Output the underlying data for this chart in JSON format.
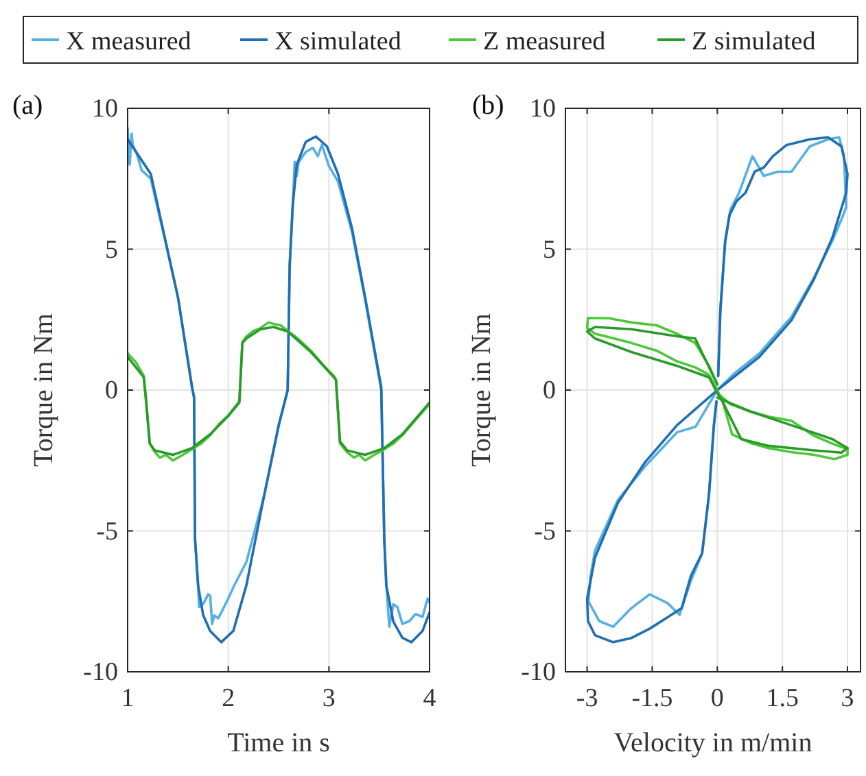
{
  "chart_data": [
    {
      "type": "line",
      "title": "(a)",
      "xlabel": "Time in s",
      "ylabel": "Torque in Nm",
      "xlim": [
        1,
        4
      ],
      "xticks": [
        1,
        2,
        3,
        4
      ],
      "ylim": [
        -10,
        10
      ],
      "yticks": [
        -10,
        -5,
        0,
        5,
        10
      ],
      "grid": true,
      "legend": "top",
      "series": [
        {
          "name": "X measured",
          "color": "#56b0e6",
          "x": [
            1,
            1.02,
            1.04,
            1.05,
            1.09,
            1.14,
            1.23,
            1.36,
            1.5,
            1.64,
            1.66,
            1.67,
            1.7,
            1.71,
            1.75,
            1.8,
            1.82,
            1.84,
            1.86,
            1.9,
            1.93,
            2.0,
            2.05,
            2.18,
            2.36,
            2.5,
            2.57,
            2.59,
            2.61,
            2.64,
            2.66,
            2.68,
            2.7,
            2.77,
            2.84,
            2.89,
            2.93,
            3.0,
            3.09,
            3.23,
            3.36,
            3.52,
            3.55,
            3.57,
            3.6,
            3.64,
            3.68,
            3.73,
            3.8,
            3.86,
            3.93,
            3.98,
            4
          ],
          "values": [
            9.3,
            8.0,
            9.1,
            8.7,
            8.4,
            7.8,
            7.5,
            5.5,
            3.3,
            0.1,
            -0.2,
            -5.3,
            -6.9,
            -7.7,
            -7.6,
            -7.25,
            -7.3,
            -8.3,
            -8.0,
            -8.1,
            -7.9,
            -7.4,
            -7.0,
            -6.1,
            -3.7,
            -1.3,
            -0.3,
            0,
            4.4,
            6.5,
            8.1,
            7.6,
            8.1,
            8.45,
            8.6,
            8.3,
            8.7,
            7.95,
            7.4,
            5.6,
            3.2,
            0,
            -5.3,
            -6.9,
            -8.4,
            -7.6,
            -7.7,
            -8.3,
            -8.2,
            -7.95,
            -8.05,
            -7.4,
            -7.55
          ]
        },
        {
          "name": "X simulated",
          "color": "#1f6fb2",
          "x": [
            1,
            1.23,
            1.36,
            1.5,
            1.64,
            1.66,
            1.67,
            1.7,
            1.75,
            1.82,
            1.93,
            2.05,
            2.18,
            2.36,
            2.5,
            2.57,
            2.59,
            2.61,
            2.64,
            2.68,
            2.77,
            2.87,
            2.98,
            3.09,
            3.23,
            3.36,
            3.52,
            3.55,
            3.57,
            3.64,
            3.73,
            3.82,
            3.93,
            4
          ],
          "values": [
            8.9,
            7.67,
            5.56,
            3.29,
            0.1,
            -0.28,
            -5.3,
            -6.93,
            -7.98,
            -8.55,
            -8.95,
            -8.55,
            -6.93,
            -3.68,
            -1.25,
            -0.28,
            0,
            4.43,
            6.54,
            8.0,
            8.81,
            9.0,
            8.65,
            7.67,
            5.73,
            3.29,
            0.1,
            -5.3,
            -6.93,
            -8.22,
            -8.79,
            -8.95,
            -8.55,
            -7.9
          ]
        },
        {
          "name": "Z measured",
          "color": "#4cc83a",
          "x": [
            1,
            1.08,
            1.16,
            1.18,
            1.22,
            1.27,
            1.32,
            1.38,
            1.45,
            1.55,
            1.64,
            1.73,
            1.82,
            1.91,
            2.0,
            2.11,
            2.14,
            2.18,
            2.25,
            2.32,
            2.4,
            2.45,
            2.52,
            2.59,
            2.7,
            2.82,
            2.94,
            3.05,
            3.07,
            3.11,
            3.18,
            3.25,
            3.3,
            3.36,
            3.45,
            3.55,
            3.64,
            3.73,
            3.85,
            4
          ],
          "values": [
            1.3,
            1.0,
            0.5,
            -0.2,
            -1.9,
            -2.2,
            -2.4,
            -2.3,
            -2.5,
            -2.3,
            -2.1,
            -1.9,
            -1.6,
            -1.2,
            -0.9,
            -0.4,
            1.7,
            1.9,
            2.1,
            2.2,
            2.4,
            2.35,
            2.3,
            2.1,
            1.8,
            1.4,
            0.9,
            0.5,
            0.35,
            -1.9,
            -2.2,
            -2.4,
            -2.3,
            -2.5,
            -2.3,
            -2.1,
            -1.9,
            -1.6,
            -1.1,
            -0.5
          ]
        },
        {
          "name": "Z simulated",
          "color": "#2b9a2b",
          "x": [
            1,
            1.16,
            1.18,
            1.22,
            1.27,
            1.45,
            1.64,
            1.82,
            2.0,
            2.11,
            2.14,
            2.18,
            2.32,
            2.45,
            2.59,
            2.82,
            3.05,
            3.07,
            3.11,
            3.18,
            3.36,
            3.55,
            3.73,
            4
          ],
          "values": [
            1.18,
            0.45,
            -0.28,
            -1.9,
            -2.14,
            -2.3,
            -2.06,
            -1.57,
            -0.92,
            -0.44,
            1.67,
            1.83,
            2.16,
            2.24,
            2.08,
            1.35,
            0.45,
            0.37,
            -1.82,
            -2.14,
            -2.3,
            -2.06,
            -1.57,
            -0.44
          ]
        }
      ]
    },
    {
      "type": "line",
      "title": "(b)",
      "xlabel": "Velocity in m/min",
      "ylabel": "Torque in Nm",
      "xlim": [
        -3.5,
        3.3
      ],
      "xticks": [
        -3,
        -1.5,
        0,
        1.5,
        3
      ],
      "ylim": [
        -10,
        10
      ],
      "yticks": [
        -10,
        -5,
        0,
        5,
        10
      ],
      "grid": true,
      "series": [
        {
          "color": "#56b0e6",
          "x": [
            0.02,
            0.07,
            0.18,
            0.3,
            0.5,
            0.81,
            1.07,
            1.39,
            1.71,
            2.13,
            2.55,
            2.81,
            2.92,
            2.97,
            2.9,
            2.65,
            2.23,
            1.71,
            0.97,
            0.4,
            0,
            -0.5,
            -0.93,
            -1.66,
            -2.29,
            -2.82,
            -2.92,
            -2.97,
            -2.72,
            -2.4,
            -1.98,
            -1.56,
            -1.14,
            -0.87,
            -0.61,
            -0.35,
            -0.19,
            -0.08,
            -0.02
          ],
          "values": [
            0.5,
            2.9,
            5.3,
            6.4,
            7.0,
            8.3,
            7.6,
            7.75,
            7.75,
            8.65,
            8.9,
            8.97,
            8.3,
            6.5,
            6.2,
            5.3,
            4.0,
            2.6,
            1.3,
            0.6,
            0,
            -1.3,
            -1.5,
            -2.7,
            -3.9,
            -5.7,
            -6.6,
            -7.5,
            -8.2,
            -8.4,
            -7.74,
            -7.25,
            -7.57,
            -7.98,
            -6.77,
            -5.8,
            -3.7,
            -1.3,
            -0.4
          ]
        },
        {
          "color": "#1f6fb2",
          "x": [
            0.02,
            0.07,
            0.18,
            0.28,
            0.44,
            0.65,
            0.86,
            1.07,
            1.28,
            1.6,
            2.13,
            2.55,
            2.86,
            3.0,
            2.97,
            2.65,
            2.23,
            1.71,
            0.97,
            0,
            -0.93,
            -1.66,
            -2.29,
            -2.82,
            -3.0,
            -2.98,
            -2.82,
            -2.4,
            -1.98,
            -1.56,
            -1.14,
            -0.82,
            -0.61,
            -0.35,
            -0.19,
            -0.08,
            -0.02
          ],
          "values": [
            0.5,
            2.8,
            5.24,
            6.2,
            6.7,
            7.0,
            7.75,
            7.9,
            8.3,
            8.7,
            8.9,
            8.97,
            8.65,
            7.67,
            7.0,
            5.4,
            3.94,
            2.48,
            1.18,
            0,
            -1.25,
            -2.55,
            -4.0,
            -5.95,
            -7.4,
            -8.2,
            -8.7,
            -8.95,
            -8.8,
            -8.47,
            -8.06,
            -7.74,
            -6.6,
            -5.79,
            -3.68,
            -1.25,
            -0.4
          ]
        },
        {
          "color": "#4cc83a",
          "x": [
            0,
            -0.19,
            -0.51,
            -0.93,
            -1.4,
            -1.98,
            -2.5,
            -2.98,
            -3.0,
            -2.82,
            -2.3,
            -1.98,
            -1.4,
            -0.93,
            -0.5,
            -0.19,
            0,
            0.13,
            0.34,
            0.8,
            1.18,
            1.7,
            2.23,
            2.7,
            3.0,
            3.0,
            2.65,
            2.2,
            1.71,
            1.2,
            0.76,
            0.3,
            0
          ],
          "values": [
            0.2,
            0.86,
            1.67,
            2.0,
            2.3,
            2.4,
            2.55,
            2.56,
            2.2,
            2.0,
            1.8,
            1.67,
            1.4,
            1.02,
            0.8,
            0.54,
            0,
            -0.44,
            -1.57,
            -1.9,
            -2.06,
            -2.2,
            -2.3,
            -2.45,
            -2.3,
            -2.1,
            -1.9,
            -1.6,
            -1.09,
            -0.95,
            -0.76,
            -0.5,
            -0.1
          ]
        },
        {
          "color": "#2b9a2b",
          "x": [
            0,
            -0.51,
            -0.93,
            -1.98,
            -2.82,
            -3.0,
            -2.82,
            -1.98,
            -0.93,
            -0.19,
            0,
            0.13,
            0.55,
            1.18,
            2.23,
            2.86,
            3.0,
            2.65,
            1.71,
            0.76,
            0
          ],
          "values": [
            0.2,
            1.83,
            1.91,
            2.16,
            2.24,
            2.08,
            1.83,
            1.35,
            0.86,
            0.45,
            -0.1,
            -0.44,
            -1.74,
            -1.98,
            -2.14,
            -2.22,
            -2.06,
            -1.74,
            -1.25,
            -0.76,
            -0.27
          ]
        }
      ]
    }
  ]
}
